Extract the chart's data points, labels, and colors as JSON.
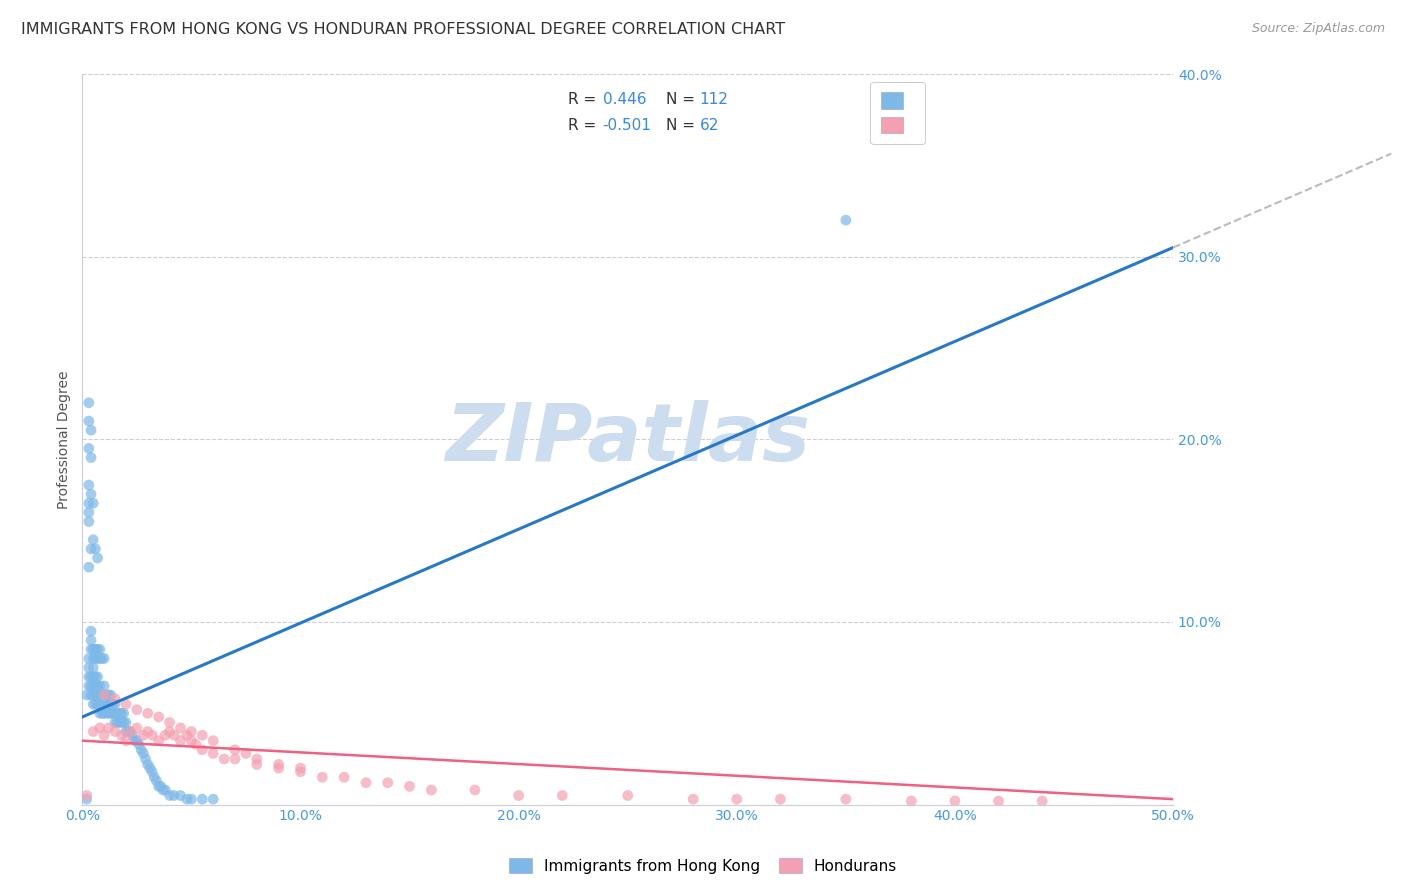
{
  "title": "IMMIGRANTS FROM HONG KONG VS HONDURAN PROFESSIONAL DEGREE CORRELATION CHART",
  "source": "Source: ZipAtlas.com",
  "ylabel": "Professional Degree",
  "xlim": [
    0.0,
    0.5
  ],
  "ylim": [
    0.0,
    0.4
  ],
  "xticks": [
    0.0,
    0.1,
    0.2,
    0.3,
    0.4,
    0.5
  ],
  "yticks": [
    0.0,
    0.1,
    0.2,
    0.3,
    0.4
  ],
  "xtick_labels": [
    "0.0%",
    "10.0%",
    "20.0%",
    "30.0%",
    "40.0%",
    "50.0%"
  ],
  "ytick_labels": [
    "",
    "10.0%",
    "20.0%",
    "30.0%",
    "40.0%"
  ],
  "hk_R": 0.446,
  "hk_N": 112,
  "hon_R": -0.501,
  "hon_N": 62,
  "hk_color": "#7db8e8",
  "hon_color": "#f4a0b0",
  "hk_line_color": "#2878c8",
  "hon_line_color": "#f06080",
  "dash_color": "#bbbbbb",
  "watermark": "ZIPatlas",
  "watermark_color": "#ccddf0",
  "legend_label_hk": "Immigrants from Hong Kong",
  "legend_label_hon": "Hondurans",
  "title_fontsize": 11.5,
  "axis_label_fontsize": 10,
  "tick_fontsize": 10,
  "source_fontsize": 9,
  "legend_fontsize": 11,
  "grid_color": "#ccccdd",
  "background_color": "#ffffff",
  "hk_line_x0": 0.0,
  "hk_line_y0": 0.048,
  "hk_line_x1": 0.5,
  "hk_line_y1": 0.305,
  "hon_line_x0": 0.0,
  "hon_line_y0": 0.035,
  "hon_line_x1": 0.5,
  "hon_line_y1": 0.003,
  "hk_scatter_x": [
    0.002,
    0.003,
    0.003,
    0.003,
    0.004,
    0.004,
    0.004,
    0.005,
    0.005,
    0.005,
    0.005,
    0.005,
    0.006,
    0.006,
    0.006,
    0.006,
    0.007,
    0.007,
    0.007,
    0.007,
    0.008,
    0.008,
    0.008,
    0.008,
    0.009,
    0.009,
    0.009,
    0.01,
    0.01,
    0.01,
    0.01,
    0.011,
    0.011,
    0.011,
    0.012,
    0.012,
    0.012,
    0.013,
    0.013,
    0.013,
    0.014,
    0.014,
    0.015,
    0.015,
    0.015,
    0.016,
    0.016,
    0.017,
    0.017,
    0.018,
    0.018,
    0.019,
    0.019,
    0.02,
    0.02,
    0.021,
    0.022,
    0.023,
    0.024,
    0.025,
    0.026,
    0.027,
    0.028,
    0.029,
    0.03,
    0.031,
    0.032,
    0.033,
    0.034,
    0.035,
    0.036,
    0.037,
    0.038,
    0.04,
    0.042,
    0.045,
    0.048,
    0.05,
    0.055,
    0.06,
    0.003,
    0.004,
    0.005,
    0.006,
    0.007,
    0.003,
    0.004,
    0.005,
    0.003,
    0.004,
    0.003,
    0.004,
    0.003,
    0.003,
    0.003,
    0.003,
    0.003,
    0.004,
    0.004,
    0.004,
    0.005,
    0.005,
    0.006,
    0.006,
    0.007,
    0.007,
    0.008,
    0.008,
    0.009,
    0.01,
    0.35,
    0.002
  ],
  "hk_scatter_y": [
    0.06,
    0.065,
    0.07,
    0.075,
    0.06,
    0.065,
    0.07,
    0.055,
    0.06,
    0.065,
    0.07,
    0.075,
    0.055,
    0.06,
    0.065,
    0.07,
    0.055,
    0.06,
    0.065,
    0.07,
    0.05,
    0.055,
    0.06,
    0.065,
    0.05,
    0.055,
    0.06,
    0.05,
    0.055,
    0.06,
    0.065,
    0.05,
    0.055,
    0.06,
    0.05,
    0.055,
    0.06,
    0.05,
    0.055,
    0.06,
    0.05,
    0.055,
    0.045,
    0.05,
    0.055,
    0.045,
    0.05,
    0.045,
    0.05,
    0.045,
    0.05,
    0.045,
    0.05,
    0.04,
    0.045,
    0.04,
    0.04,
    0.038,
    0.035,
    0.035,
    0.033,
    0.03,
    0.028,
    0.025,
    0.022,
    0.02,
    0.018,
    0.015,
    0.013,
    0.01,
    0.01,
    0.008,
    0.008,
    0.005,
    0.005,
    0.005,
    0.003,
    0.003,
    0.003,
    0.003,
    0.13,
    0.14,
    0.145,
    0.14,
    0.135,
    0.175,
    0.17,
    0.165,
    0.195,
    0.19,
    0.21,
    0.205,
    0.22,
    0.155,
    0.16,
    0.165,
    0.08,
    0.085,
    0.09,
    0.095,
    0.08,
    0.085,
    0.08,
    0.085,
    0.08,
    0.085,
    0.08,
    0.085,
    0.08,
    0.08,
    0.32,
    0.003
  ],
  "hon_scatter_x": [
    0.005,
    0.008,
    0.01,
    0.012,
    0.015,
    0.018,
    0.02,
    0.022,
    0.025,
    0.028,
    0.03,
    0.032,
    0.035,
    0.038,
    0.04,
    0.042,
    0.045,
    0.048,
    0.05,
    0.052,
    0.055,
    0.06,
    0.065,
    0.07,
    0.075,
    0.08,
    0.09,
    0.1,
    0.11,
    0.12,
    0.13,
    0.14,
    0.15,
    0.16,
    0.18,
    0.2,
    0.22,
    0.25,
    0.28,
    0.3,
    0.32,
    0.35,
    0.38,
    0.4,
    0.42,
    0.44,
    0.01,
    0.015,
    0.02,
    0.025,
    0.03,
    0.035,
    0.04,
    0.045,
    0.05,
    0.055,
    0.06,
    0.07,
    0.08,
    0.09,
    0.1,
    0.002
  ],
  "hon_scatter_y": [
    0.04,
    0.042,
    0.038,
    0.042,
    0.04,
    0.038,
    0.035,
    0.04,
    0.042,
    0.038,
    0.04,
    0.038,
    0.035,
    0.038,
    0.04,
    0.038,
    0.035,
    0.038,
    0.035,
    0.033,
    0.03,
    0.028,
    0.025,
    0.025,
    0.028,
    0.022,
    0.02,
    0.018,
    0.015,
    0.015,
    0.012,
    0.012,
    0.01,
    0.008,
    0.008,
    0.005,
    0.005,
    0.005,
    0.003,
    0.003,
    0.003,
    0.003,
    0.002,
    0.002,
    0.002,
    0.002,
    0.06,
    0.058,
    0.055,
    0.052,
    0.05,
    0.048,
    0.045,
    0.042,
    0.04,
    0.038,
    0.035,
    0.03,
    0.025,
    0.022,
    0.02,
    0.005
  ]
}
